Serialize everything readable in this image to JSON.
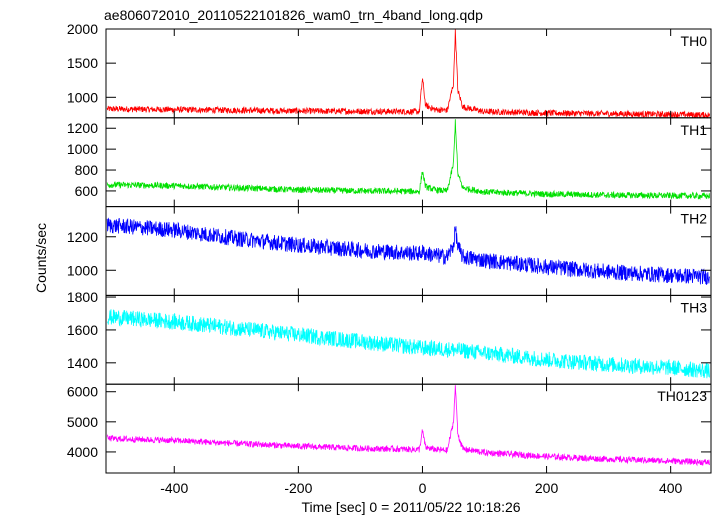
{
  "title": "ae806072010_20110522101826_wam0_trn_4band_long.qdp",
  "xlabel": "Time [sec] 0 = 2011/05/22 10:18:26",
  "ylabel": "Counts/sec",
  "chart_data": {
    "type": "line",
    "title": "ae806072010_20110522101826_wam0_trn_4band_long.qdp",
    "xlabel": "Time [sec] 0 = 2011/05/22 10:18:26",
    "ylabel": "Counts/sec",
    "xlim": [
      -510,
      465
    ],
    "x_ticks": [
      -400,
      -200,
      0,
      200,
      400
    ],
    "grid": false,
    "series": [
      {
        "name": "TH0",
        "color": "#ff0000",
        "ylim": [
          700,
          2000
        ],
        "y_ticks": [
          1000,
          1500,
          2000
        ],
        "x": [
          -510,
          -400,
          -300,
          -200,
          -100,
          -5,
          0,
          5,
          20,
          40,
          50,
          53,
          57,
          65,
          100,
          200,
          300,
          400,
          465
        ],
        "values": [
          830,
          820,
          810,
          800,
          795,
          790,
          1280,
          880,
          820,
          810,
          1200,
          1980,
          1100,
          860,
          790,
          770,
          760,
          750,
          740
        ]
      },
      {
        "name": "TH1",
        "color": "#00e000",
        "ylim": [
          450,
          1300
        ],
        "y_ticks": [
          600,
          800,
          1000,
          1200
        ],
        "x": [
          -510,
          -400,
          -300,
          -200,
          -100,
          -5,
          0,
          5,
          20,
          40,
          50,
          53,
          57,
          65,
          100,
          200,
          300,
          400,
          465
        ],
        "values": [
          660,
          650,
          630,
          610,
          600,
          595,
          790,
          640,
          610,
          600,
          860,
          1270,
          760,
          630,
          590,
          570,
          560,
          555,
          550
        ]
      },
      {
        "name": "TH2",
        "color": "#0000ff",
        "ylim": [
          850,
          1380
        ],
        "y_ticks": [
          1000,
          1200
        ],
        "x": [
          -510,
          -400,
          -300,
          -200,
          -100,
          -5,
          0,
          5,
          20,
          40,
          50,
          53,
          57,
          65,
          100,
          200,
          300,
          400,
          465
        ],
        "values": [
          1270,
          1240,
          1190,
          1150,
          1120,
          1100,
          1110,
          1100,
          1090,
          1080,
          1150,
          1250,
          1140,
          1080,
          1060,
          1020,
          990,
          970,
          960
        ]
      },
      {
        "name": "TH3",
        "color": "#00ffff",
        "ylim": [
          1270,
          1810
        ],
        "y_ticks": [
          1400,
          1600,
          1800
        ],
        "x": [
          -510,
          -400,
          -300,
          -200,
          -100,
          0,
          50,
          100,
          200,
          300,
          400,
          465
        ],
        "values": [
          1680,
          1650,
          1610,
          1570,
          1530,
          1490,
          1480,
          1460,
          1420,
          1390,
          1370,
          1350
        ]
      },
      {
        "name": "TH0123",
        "color": "#ff00ff",
        "ylim": [
          3300,
          6250
        ],
        "y_ticks": [
          4000,
          5000,
          6000
        ],
        "x": [
          -510,
          -400,
          -300,
          -200,
          -100,
          -5,
          0,
          5,
          20,
          40,
          50,
          53,
          57,
          65,
          100,
          200,
          300,
          400,
          465
        ],
        "values": [
          4450,
          4380,
          4280,
          4190,
          4120,
          4080,
          4700,
          4150,
          4080,
          4050,
          5000,
          6200,
          4600,
          4100,
          3980,
          3850,
          3760,
          3700,
          3650
        ]
      }
    ]
  }
}
